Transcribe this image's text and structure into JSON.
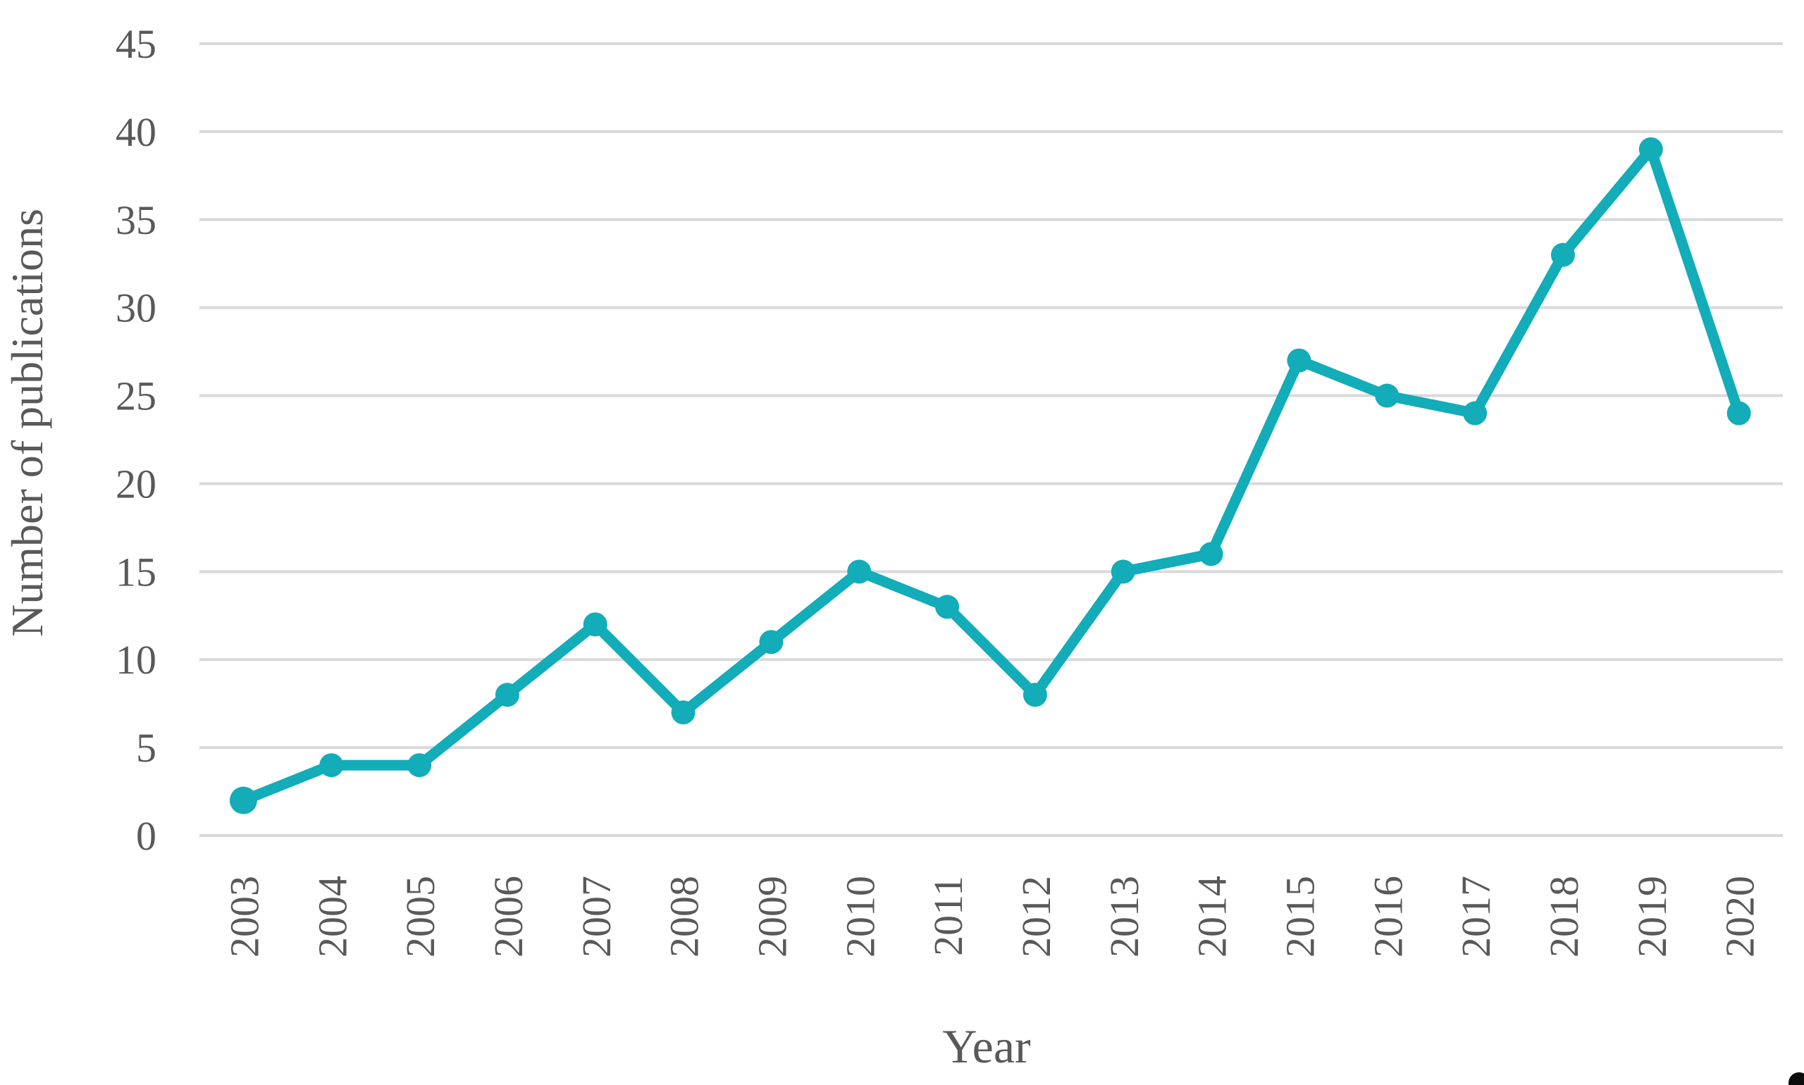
{
  "chart_data": {
    "type": "line",
    "title": "",
    "xlabel": "Year",
    "ylabel": "Number of publications",
    "categories": [
      "2003",
      "2004",
      "2005",
      "2006",
      "2007",
      "2008",
      "2009",
      "2010",
      "2011",
      "2012",
      "2013",
      "2014",
      "2015",
      "2016",
      "2017",
      "2018",
      "2019",
      "2020"
    ],
    "series": [
      {
        "name": "Number of publications",
        "values": [
          2,
          4,
          4,
          8,
          12,
          7,
          11,
          15,
          13,
          8,
          15,
          16,
          27,
          25,
          24,
          33,
          39,
          24
        ]
      }
    ],
    "ylim": [
      0,
      45
    ],
    "ytick_step": 5,
    "ytick_labels": [
      "0",
      "5",
      "10",
      "15",
      "20",
      "25",
      "30",
      "35",
      "40",
      "45"
    ],
    "grid": "horizontal",
    "legend": "none",
    "marker": "circle",
    "colors": {
      "line": "#13acb9",
      "marker": "#13acb9",
      "grid": "#d9d9d9",
      "text": "#595959",
      "background": "#ffffff"
    }
  },
  "decorations": {
    "corner_artifact_color": "#0d0d0d"
  }
}
